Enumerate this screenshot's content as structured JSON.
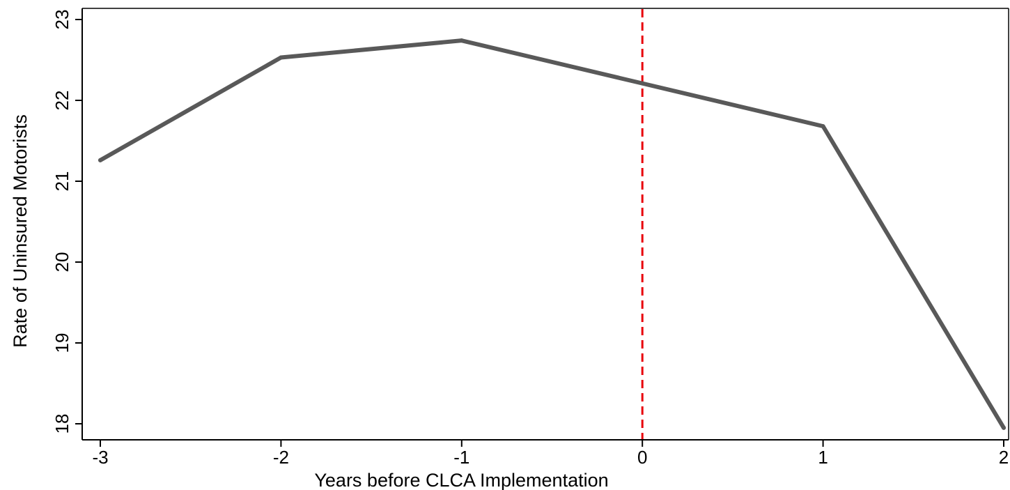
{
  "chart_data": {
    "type": "line",
    "title": "",
    "xlabel": "Years before CLCA Implementation",
    "ylabel": "Rate of Uninsured Motorists",
    "xlim": [
      -3.1,
      2.0
    ],
    "ylim": [
      17.8,
      23.15
    ],
    "xticks": [
      -3,
      -2,
      -1,
      0,
      1,
      2
    ],
    "yticks": [
      18,
      19,
      20,
      21,
      22,
      23
    ],
    "x": [
      -3,
      -2,
      -1,
      0,
      1,
      2
    ],
    "series": [
      {
        "values": [
          21.26,
          22.53,
          22.74,
          22.21,
          21.68,
          17.95
        ],
        "color": "#595959"
      }
    ],
    "reference_line": {
      "x": 0,
      "color": "#e8000b",
      "style": "dashed"
    },
    "grid": false,
    "legend": "none"
  }
}
